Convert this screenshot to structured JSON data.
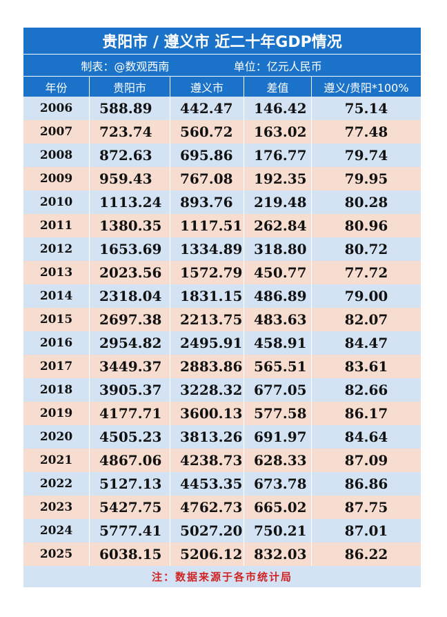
{
  "title": "贵阳市 / 遵义市 近二十年GDP情况",
  "subtitle": {
    "maker": "制表：@数观西南",
    "unit": "单位：亿元人民币"
  },
  "headers": [
    "年份",
    "贵阳市",
    "遵义市",
    "差值",
    "遵义/贵阳*100%"
  ],
  "rows": [
    [
      "2006",
      "588.89",
      "442.47",
      "146.42",
      "75.14"
    ],
    [
      "2007",
      "723.74",
      "560.72",
      "163.02",
      "77.48"
    ],
    [
      "2008",
      "872.63",
      "695.86",
      "176.77",
      "79.74"
    ],
    [
      "2009",
      "959.43",
      "767.08",
      "192.35",
      "79.95"
    ],
    [
      "2010",
      "1113.24",
      "893.76",
      "219.48",
      "80.28"
    ],
    [
      "2011",
      "1380.35",
      "1117.51",
      "262.84",
      "80.96"
    ],
    [
      "2012",
      "1653.69",
      "1334.89",
      "318.80",
      "80.72"
    ],
    [
      "2013",
      "2023.56",
      "1572.79",
      "450.77",
      "77.72"
    ],
    [
      "2014",
      "2318.04",
      "1831.15",
      "486.89",
      "79.00"
    ],
    [
      "2015",
      "2697.38",
      "2213.75",
      "483.63",
      "82.07"
    ],
    [
      "2016",
      "2954.82",
      "2495.91",
      "458.91",
      "84.47"
    ],
    [
      "2017",
      "3449.37",
      "2883.86",
      "565.51",
      "83.61"
    ],
    [
      "2018",
      "3905.37",
      "3228.32",
      "677.05",
      "82.66"
    ],
    [
      "2019",
      "4177.71",
      "3600.13",
      "577.58",
      "86.17"
    ],
    [
      "2020",
      "4505.23",
      "3813.26",
      "691.97",
      "84.64"
    ],
    [
      "2021",
      "4867.06",
      "4238.73",
      "628.33",
      "87.09"
    ],
    [
      "2022",
      "5127.13",
      "4453.35",
      "673.78",
      "86.86"
    ],
    [
      "2023",
      "5427.75",
      "4762.73",
      "665.02",
      "87.75"
    ],
    [
      "2024",
      "5777.41",
      "5027.20",
      "750.21",
      "87.01"
    ],
    [
      "2025",
      "6038.15",
      "5206.12",
      "832.03",
      "86.22"
    ]
  ],
  "footer": "注：数据来源于各市统计局",
  "colors": {
    "header_blue": "#1a73c9",
    "row_blue": "#d3e3f4",
    "row_peach": "#f7ddd0",
    "footer_red": "#d22222"
  }
}
